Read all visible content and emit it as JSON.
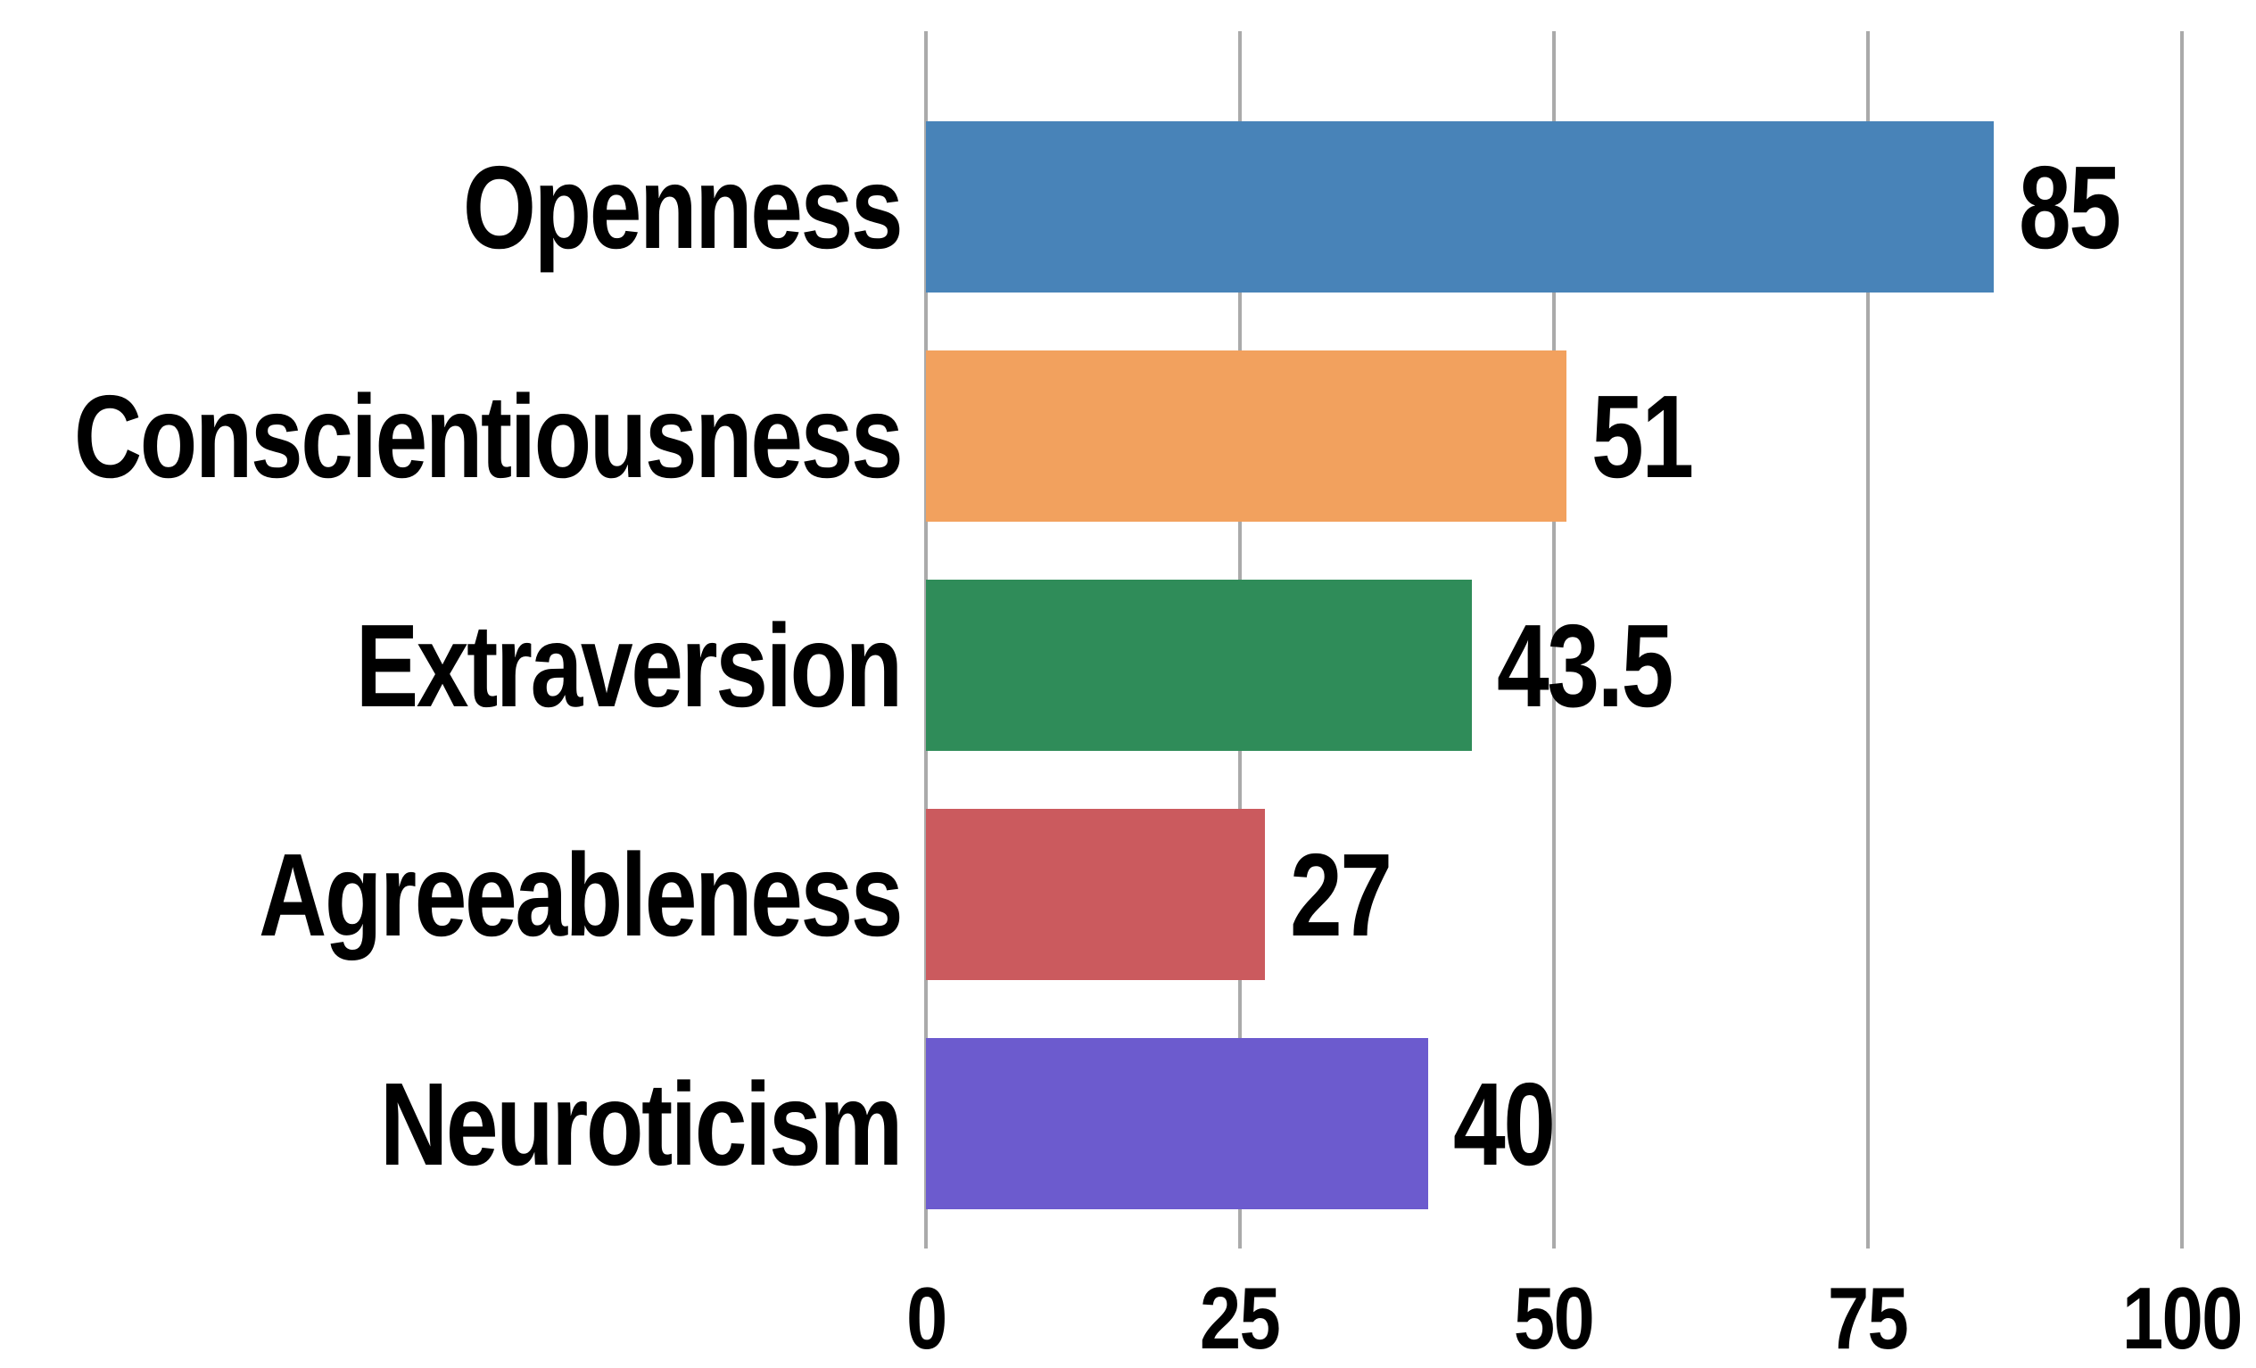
{
  "chart_data": {
    "type": "bar",
    "orientation": "horizontal",
    "title": "",
    "xlabel": "",
    "ylabel": "",
    "categories": [
      "Openness",
      "Conscientiousness",
      "Extraversion",
      "Agreeableness",
      "Neuroticism"
    ],
    "values": [
      85,
      51,
      43.5,
      27,
      40
    ],
    "value_labels": [
      "85",
      "51",
      "43.5",
      "27",
      "40"
    ],
    "bar_colors": [
      "#4883b8",
      "#f2a15e",
      "#2f8c59",
      "#cb5a5e",
      "#6c5bce"
    ],
    "xlim": [
      0,
      100
    ],
    "x_ticks": [
      0,
      25,
      50,
      75,
      100
    ],
    "x_tick_labels": [
      "0",
      "25",
      "50",
      "75",
      "100"
    ],
    "grid": "vertical-gridlines-on",
    "gridline_color": "#aaaaaa",
    "text_color": "#000000",
    "background_color": "#ffffff",
    "legend": "none",
    "value_label_position": "right-of-bar-end"
  }
}
